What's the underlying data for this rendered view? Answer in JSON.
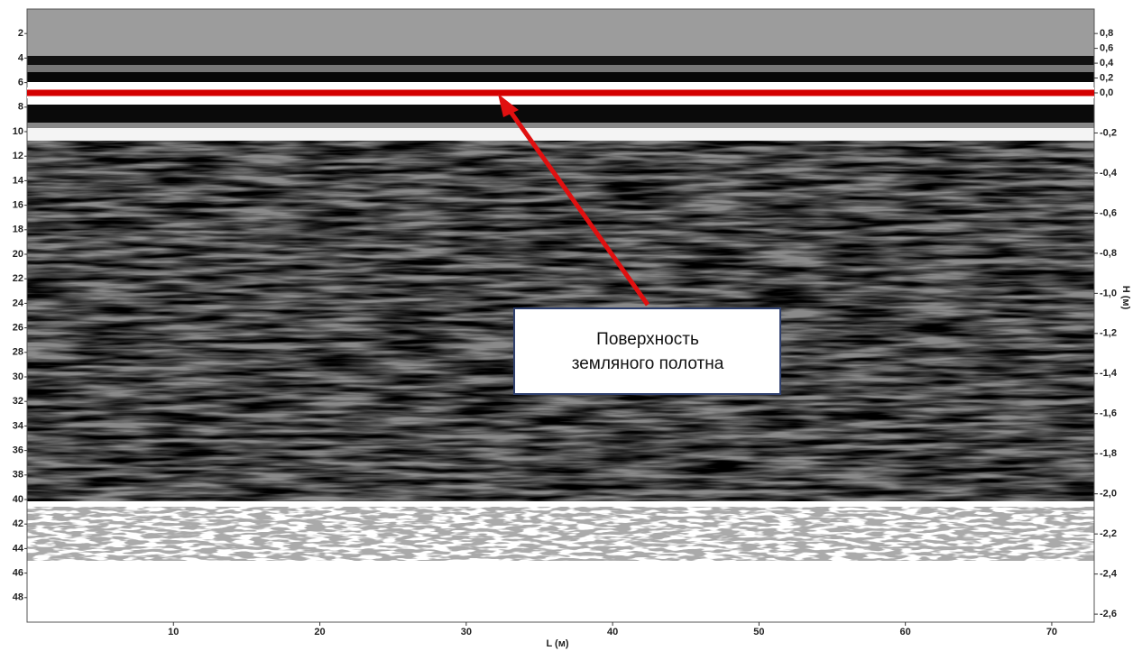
{
  "chart_data": {
    "type": "radargram",
    "xlabel": "L (м)",
    "y2label": "H (м)",
    "xlim": [
      0,
      72.9
    ],
    "xticks": [
      10,
      20,
      30,
      40,
      50,
      60,
      70
    ],
    "ylim": [
      0,
      50
    ],
    "yticks": [
      2,
      4,
      6,
      8,
      10,
      12,
      14,
      16,
      18,
      20,
      22,
      24,
      26,
      28,
      30,
      32,
      34,
      36,
      38,
      40,
      42,
      44,
      46,
      48
    ],
    "y2lim": [
      -2.64,
      1.13
    ],
    "y2ticks": [
      {
        "value": 0.8,
        "label": "0,8"
      },
      {
        "value": 0.6,
        "label": "0,6"
      },
      {
        "value": 0.4,
        "label": "0,4"
      },
      {
        "value": 0.2,
        "label": "0,2"
      },
      {
        "value": 0.0,
        "label": "0,0"
      },
      {
        "value": -0.2,
        "label": "-0,2"
      },
      {
        "value": -0.4,
        "label": "-0,4"
      },
      {
        "value": -0.6,
        "label": "-0,6"
      },
      {
        "value": -0.8,
        "label": "-0,8"
      },
      {
        "value": -1.0,
        "label": "-1,0"
      },
      {
        "value": -1.2,
        "label": "-1,2"
      },
      {
        "value": -1.4,
        "label": "-1,4"
      },
      {
        "value": -1.6,
        "label": "-1,6"
      },
      {
        "value": -1.8,
        "label": "-1,8"
      },
      {
        "value": -2.0,
        "label": "-2,0"
      },
      {
        "value": -2.2,
        "label": "-2,2"
      },
      {
        "value": -2.4,
        "label": "-2,4"
      },
      {
        "value": -2.6,
        "label": "-2,6"
      }
    ],
    "reference_line": {
      "value": 0,
      "axis": "y2",
      "color": "#d40000"
    },
    "annotation": [
      "Поверхность",
      "земляного полотна"
    ],
    "annotation_color": "#e01010"
  }
}
